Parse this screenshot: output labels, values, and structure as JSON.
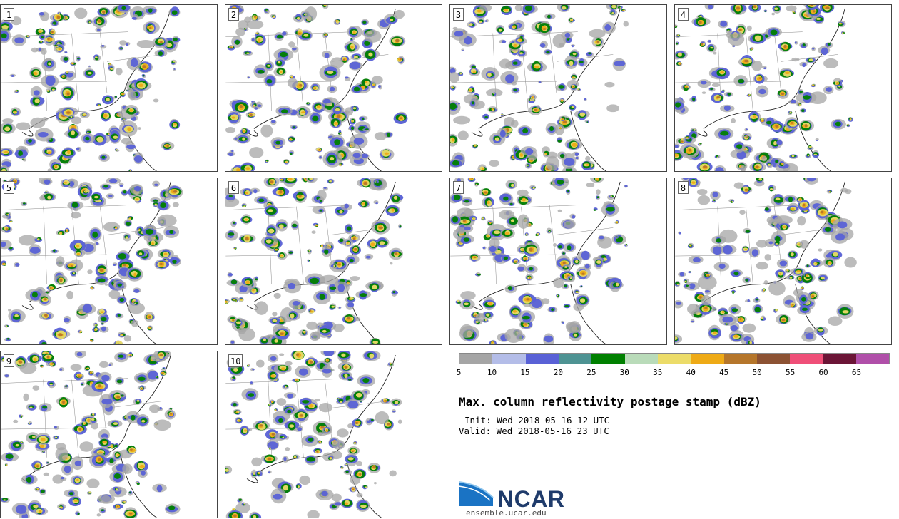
{
  "panels": [
    {
      "label": "1"
    },
    {
      "label": "2"
    },
    {
      "label": "3"
    },
    {
      "label": "4"
    },
    {
      "label": "5"
    },
    {
      "label": "6"
    },
    {
      "label": "7"
    },
    {
      "label": "8"
    },
    {
      "label": "9"
    },
    {
      "label": "10"
    }
  ],
  "colorbar": {
    "colors": [
      "#a5a5a5",
      "#b4bde8",
      "#5961d6",
      "#4e9393",
      "#008000",
      "#b9dbb9",
      "#ecdc69",
      "#eeaa16",
      "#b5762b",
      "#8c5233",
      "#ef4f78",
      "#6b1536",
      "#b04fa9"
    ],
    "tick_labels": [
      "5",
      "10",
      "15",
      "20",
      "25",
      "30",
      "35",
      "40",
      "45",
      "50",
      "55",
      "60",
      "65"
    ]
  },
  "info": {
    "title": "Max. column reflectivity postage stamp (dBZ)",
    "init": "Init: Wed 2018-05-16 12 UTC",
    "valid": "Valid: Wed 2018-05-16 23 UTC"
  },
  "logo": {
    "name": "NCAR",
    "url": "ensemble.ucar.edu"
  }
}
